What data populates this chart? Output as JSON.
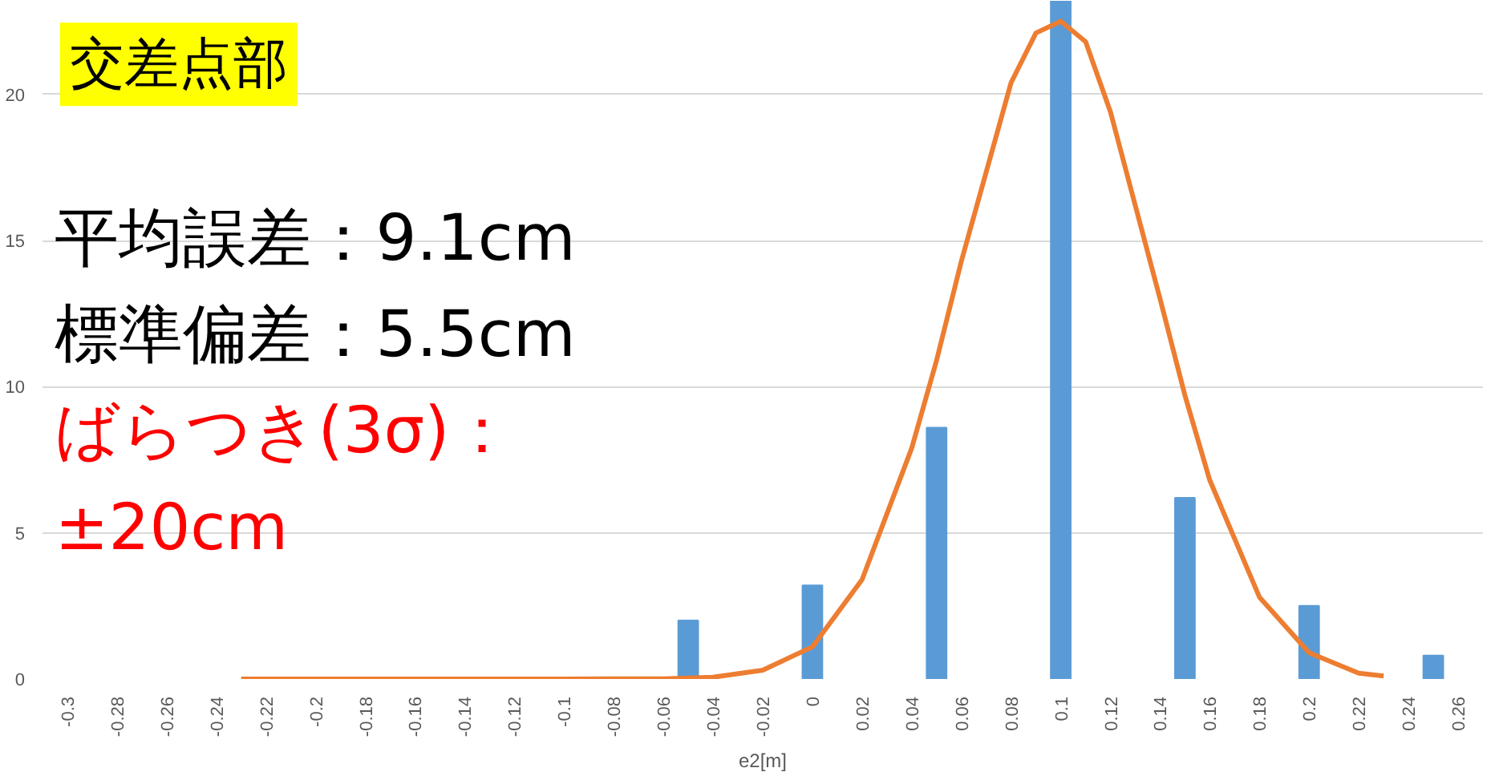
{
  "chart_data": {
    "type": "bar",
    "title": "交差点部",
    "xlabel": "e2[m]",
    "annotations": [
      "平均誤差：9.1cm",
      "標準偏差：5.5cm",
      "ばらつき(3σ)：",
      "±20cm"
    ],
    "xlim": [
      -0.31,
      0.27
    ],
    "ylim": [
      0,
      23.2
    ],
    "xticks": [
      -0.3,
      -0.28,
      -0.26,
      -0.24,
      -0.22,
      -0.2,
      -0.18,
      -0.16,
      -0.14,
      -0.12,
      -0.1,
      -0.08,
      -0.06,
      -0.04,
      -0.02,
      0,
      0.02,
      0.04,
      0.06,
      0.08,
      0.1,
      0.12,
      0.14,
      0.16,
      0.18,
      0.2,
      0.22,
      0.24,
      0.26
    ],
    "yticks": [
      0,
      5,
      10,
      15,
      20
    ],
    "grid": "y",
    "series": [
      {
        "color": "#5b9bd5",
        "x": [
          -0.05,
          0,
          0.05,
          0.1,
          0.15,
          0.2,
          0.25
        ],
        "values": [
          2,
          3.2,
          8.6,
          23.2,
          6.2,
          2.5,
          0.8
        ]
      },
      {
        "type": "line",
        "color": "#ed7d31",
        "x": [
          -0.23,
          -0.1,
          -0.06,
          -0.04,
          -0.02,
          0,
          0.02,
          0.04,
          0.05,
          0.06,
          0.08,
          0.09,
          0.1,
          0.11,
          0.12,
          0.14,
          0.15,
          0.16,
          0.18,
          0.2,
          0.22,
          0.23
        ],
        "values": [
          0,
          0,
          0.01,
          0.06,
          0.3,
          1.1,
          3.4,
          7.9,
          10.9,
          14.3,
          20.4,
          22.1,
          22.5,
          21.8,
          19.4,
          13,
          9.7,
          6.8,
          2.8,
          0.9,
          0.2,
          0.1
        ]
      }
    ]
  }
}
